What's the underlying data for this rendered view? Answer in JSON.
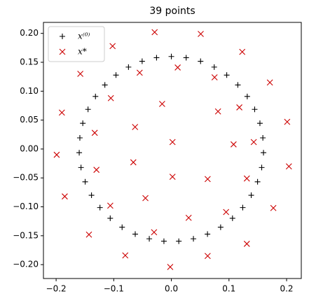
{
  "chart_data": {
    "type": "scatter",
    "title": "39 points",
    "xlim": [
      -0.222,
      0.2255
    ],
    "ylim": [
      -0.224,
      0.219
    ],
    "xticks": [
      {
        "value": -0.2,
        "label": "−0.2"
      },
      {
        "value": -0.1,
        "label": "−0.1"
      },
      {
        "value": 0,
        "label": "0.0"
      },
      0.1,
      0.2
    ],
    "yticks": [
      {
        "value": -0.2,
        "label": "−0.20"
      },
      {
        "value": -0.15,
        "label": "−0.15"
      },
      {
        "value": -0.1,
        "label": "−0.10"
      },
      {
        "value": -0.05,
        "label": "−0.05"
      },
      {
        "value": 0,
        "label": "0.00"
      },
      {
        "value": 0.05,
        "label": "0.05"
      },
      {
        "value": 0.1,
        "label": "0.10"
      },
      {
        "value": 0.15,
        "label": "0.15"
      },
      {
        "value": 0.2,
        "label": "0.20"
      }
    ],
    "legend": "upper left",
    "series": [
      {
        "name": "x⁽⁰⁾",
        "color": "#000000",
        "marker": "+",
        "x": [
          0,
          -0.0257,
          -0.0507,
          -0.0744,
          -0.0961,
          -0.1154,
          -0.1317,
          -0.1446,
          -0.1537,
          -0.1588,
          -0.1599,
          -0.1568,
          -0.1496,
          -0.1386,
          -0.1239,
          -0.1061,
          -0.0855,
          -0.0627,
          -0.0383,
          -0.0129,
          0.0129,
          0.0383,
          0.0627,
          0.0855,
          0.1061,
          0.1239,
          0.1386,
          0.1496,
          0.1568,
          0.1599,
          0.1588,
          0.1537,
          0.1446,
          0.1317,
          0.1154,
          0.0961,
          0.0744,
          0.0507,
          0.0257
        ],
        "y": [
          0.16,
          0.1579,
          0.1518,
          0.1417,
          0.1279,
          0.1108,
          0.0909,
          0.0686,
          0.0445,
          0.0193,
          -0.0064,
          -0.032,
          -0.0567,
          -0.08,
          -0.1013,
          -0.1198,
          -0.1353,
          -0.1472,
          -0.1553,
          -0.1595,
          -0.1595,
          -0.1553,
          -0.1472,
          -0.1353,
          -0.1198,
          -0.1013,
          -0.08,
          -0.0567,
          -0.032,
          -0.0064,
          0.0193,
          0.0445,
          0.0686,
          0.0909,
          0.1108,
          0.1279,
          0.1417,
          0.1518,
          0.1579
        ]
      },
      {
        "name": "x*",
        "color": "#cc0000",
        "marker": "x",
        "x": [
          -0.029,
          0.051,
          -0.102,
          0.123,
          -0.158,
          -0.055,
          0.011,
          0.075,
          0.171,
          -0.105,
          -0.016,
          0.118,
          -0.19,
          0.081,
          -0.063,
          -0.133,
          0.201,
          0.143,
          0.002,
          0.108,
          -0.199,
          -0.066,
          -0.13,
          0.204,
          0.002,
          0.063,
          0.131,
          -0.185,
          -0.045,
          -0.106,
          0.177,
          0.095,
          0.03,
          -0.03,
          -0.143,
          0.131,
          -0.08,
          0.063,
          -0.002
        ],
        "y": [
          0.202,
          0.199,
          0.178,
          0.168,
          0.13,
          0.132,
          0.141,
          0.124,
          0.115,
          0.088,
          0.078,
          0.072,
          0.063,
          0.065,
          0.038,
          0.028,
          0.047,
          0.012,
          0.012,
          0.008,
          -0.01,
          -0.023,
          -0.036,
          -0.03,
          -0.048,
          -0.052,
          -0.051,
          -0.082,
          -0.085,
          -0.098,
          -0.102,
          -0.109,
          -0.119,
          -0.144,
          -0.148,
          -0.164,
          -0.184,
          -0.185,
          -0.204
        ]
      }
    ]
  }
}
